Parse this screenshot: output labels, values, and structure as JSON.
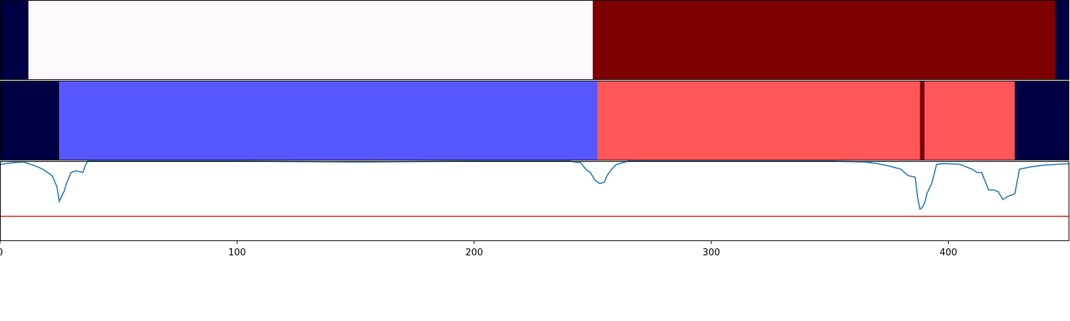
{
  "chart_data": [
    {
      "type": "heatmap",
      "xlim": [
        0,
        451
      ],
      "segments": [
        {
          "x0": 0,
          "x1": 12,
          "color": "#000045"
        },
        {
          "x0": 12,
          "x1": 250,
          "color": "#fff9fe"
        },
        {
          "x0": 250,
          "x1": 445,
          "color": "#7f0000"
        },
        {
          "x0": 445,
          "x1": 451,
          "color": "#000045"
        }
      ]
    },
    {
      "type": "heatmap",
      "xlim": [
        0,
        451
      ],
      "segments": [
        {
          "x0": 0,
          "x1": 25,
          "color": "#000045"
        },
        {
          "x0": 25,
          "x1": 252,
          "color": "#5757ff"
        },
        {
          "x0": 252,
          "x1": 388,
          "color": "#ff5757"
        },
        {
          "x0": 388,
          "x1": 390,
          "color": "#7f0000"
        },
        {
          "x0": 390,
          "x1": 428,
          "color": "#ff5757"
        },
        {
          "x0": 428,
          "x1": 451,
          "color": "#000045"
        }
      ]
    },
    {
      "type": "line",
      "xlim": [
        0,
        451
      ],
      "ylim": [
        0,
        1
      ],
      "xticks": [
        0,
        100,
        200,
        300,
        400
      ],
      "x": [
        0,
        5,
        10,
        15,
        18,
        20,
        22,
        24,
        25,
        27,
        28,
        30,
        32,
        35,
        36,
        37,
        40,
        50,
        100,
        150,
        200,
        240,
        245,
        247,
        249,
        251,
        253,
        255,
        256,
        258,
        260,
        265,
        300,
        350,
        365,
        370,
        375,
        380,
        383,
        386,
        387,
        388,
        389,
        390,
        391,
        393,
        395,
        397,
        400,
        405,
        410,
        412,
        414,
        417,
        419,
        421,
        423,
        425,
        428,
        430,
        435,
        440,
        445,
        451
      ],
      "series": [
        {
          "color": "#1f77b4",
          "values": [
            0.96,
            0.98,
            0.99,
            0.94,
            0.9,
            0.86,
            0.82,
            0.68,
            0.5,
            0.62,
            0.72,
            0.86,
            0.88,
            0.86,
            0.95,
            1.0,
            1.0,
            1.0,
            1.0,
            0.99,
            1.0,
            1.0,
            0.98,
            0.9,
            0.86,
            0.76,
            0.72,
            0.74,
            0.82,
            0.9,
            0.96,
            1.0,
            1.0,
            1.0,
            0.99,
            0.97,
            0.94,
            0.9,
            0.82,
            0.8,
            0.55,
            0.4,
            0.42,
            0.48,
            0.6,
            0.72,
            0.96,
            0.97,
            0.97,
            0.96,
            0.9,
            0.86,
            0.86,
            0.64,
            0.64,
            0.62,
            0.52,
            0.56,
            0.59,
            0.9,
            0.93,
            0.95,
            0.96,
            0.97
          ]
        }
      ],
      "threshold": {
        "value": 0.31,
        "color": "#d62728"
      }
    }
  ]
}
